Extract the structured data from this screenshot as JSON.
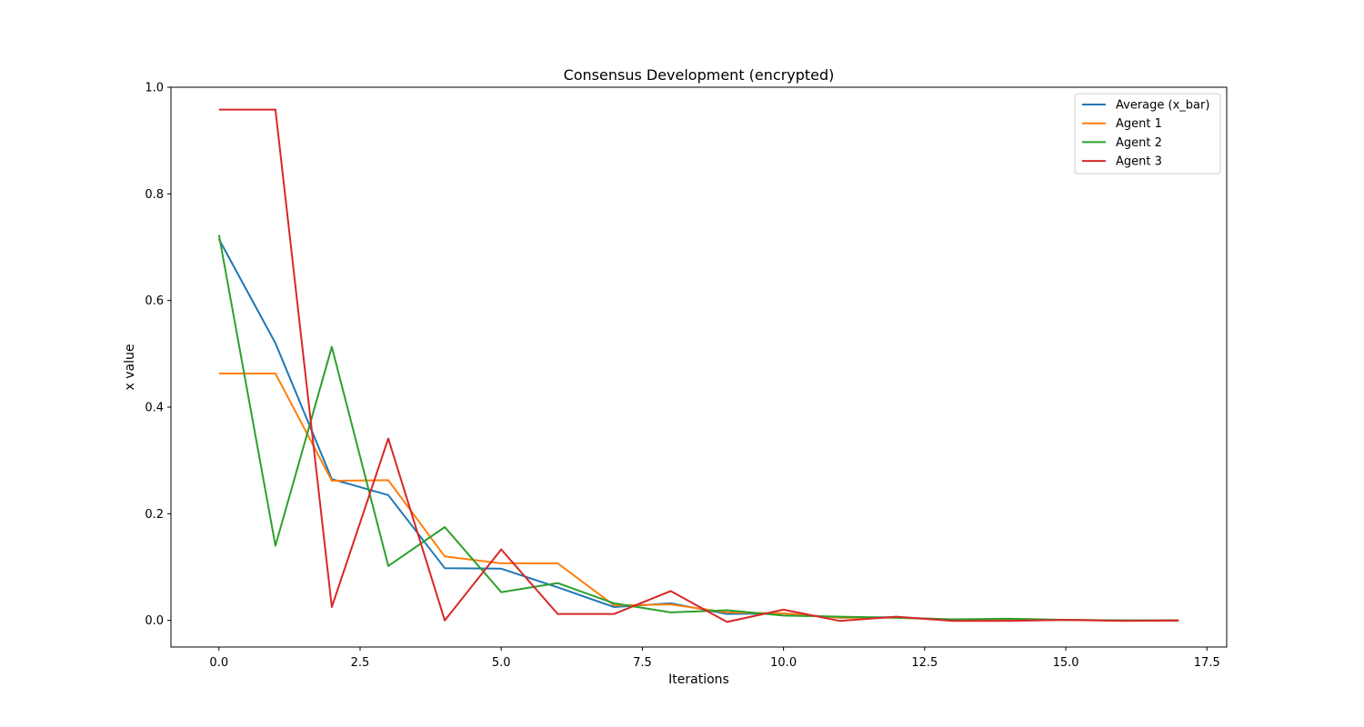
{
  "chart_data": {
    "type": "line",
    "title": "Consensus Development (encrypted)",
    "xlabel": "Iterations",
    "ylabel": "x value",
    "xlim": [
      -0.85,
      17.85
    ],
    "ylim": [
      -0.05,
      1.0
    ],
    "xticks": [
      0.0,
      2.5,
      5.0,
      7.5,
      10.0,
      12.5,
      15.0,
      17.5
    ],
    "xtick_labels": [
      "0.0",
      "2.5",
      "5.0",
      "7.5",
      "10.0",
      "12.5",
      "15.0",
      "17.5"
    ],
    "yticks": [
      0.0,
      0.2,
      0.4,
      0.6,
      0.8,
      1.0
    ],
    "ytick_labels": [
      "0.0",
      "0.2",
      "0.4",
      "0.6",
      "0.8",
      "1.0"
    ],
    "grid": false,
    "legend_position": "top-right",
    "x": [
      0,
      1,
      2,
      3,
      4,
      5,
      6,
      7,
      8,
      9,
      10,
      11,
      12,
      13,
      14,
      15,
      16,
      17
    ],
    "series": [
      {
        "name": "Average (x_bar)",
        "color": "#1f77b4",
        "values": [
          0.715,
          0.52,
          0.265,
          0.235,
          0.098,
          0.097,
          0.062,
          0.025,
          0.032,
          0.012,
          0.013,
          0.005,
          0.006,
          0.001,
          0.001,
          0.001,
          0.0,
          0.0
        ]
      },
      {
        "name": "Agent 1",
        "color": "#ff7f0e",
        "values": [
          0.463,
          0.463,
          0.262,
          0.263,
          0.12,
          0.107,
          0.107,
          0.028,
          0.03,
          0.015,
          0.013,
          0.005,
          0.005,
          0.001,
          0.001,
          0.001,
          0.0,
          0.0
        ]
      },
      {
        "name": "Agent 2",
        "color": "#2ca02c",
        "values": [
          0.723,
          0.14,
          0.513,
          0.102,
          0.175,
          0.053,
          0.07,
          0.032,
          0.015,
          0.019,
          0.009,
          0.007,
          0.005,
          0.002,
          0.003,
          0.001,
          0.0,
          0.0
        ]
      },
      {
        "name": "Agent 3",
        "color": "#d62728",
        "values": [
          0.958,
          0.958,
          0.025,
          0.341,
          0.0,
          0.133,
          0.012,
          0.012,
          0.055,
          -0.003,
          0.02,
          -0.001,
          0.007,
          -0.001,
          -0.001,
          0.001,
          -0.001,
          0.0
        ]
      }
    ]
  }
}
